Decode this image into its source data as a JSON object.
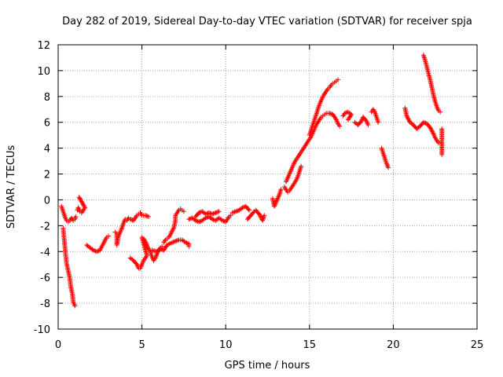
{
  "chart_data": {
    "type": "scatter",
    "title": "Day 282 of 2019, Sidereal Day-to-day VTEC variation (SDTVAR) for receiver spja",
    "xlabel": "GPS time / hours",
    "ylabel": "SDTVAR / TECUs",
    "xlim": [
      0,
      25
    ],
    "ylim": [
      -10,
      12
    ],
    "xticks": [
      0,
      5,
      10,
      15,
      20,
      25
    ],
    "yticks": [
      -10,
      -8,
      -6,
      -4,
      -2,
      0,
      2,
      4,
      6,
      8,
      10,
      12
    ],
    "grid": true,
    "marker": "plus",
    "color": "#ff0000",
    "series": [
      {
        "segments": [
          [
            [
              0.2,
              -0.5
            ],
            [
              0.3,
              -0.9
            ],
            [
              0.4,
              -1.3
            ],
            [
              0.5,
              -1.6
            ],
            [
              0.6,
              -1.7
            ],
            [
              0.7,
              -1.6
            ],
            [
              0.8,
              -1.4
            ],
            [
              0.9,
              -1.6
            ],
            [
              1.0,
              -1.5
            ],
            [
              1.05,
              -1.3
            ]
          ],
          [
            [
              0.3,
              -2.2
            ],
            [
              0.35,
              -2.9
            ],
            [
              0.4,
              -3.6
            ],
            [
              0.45,
              -4.3
            ],
            [
              0.5,
              -4.9
            ],
            [
              0.6,
              -5.5
            ],
            [
              0.7,
              -6.1
            ],
            [
              0.75,
              -6.7
            ],
            [
              0.85,
              -7.3
            ],
            [
              0.9,
              -7.9
            ],
            [
              1.0,
              -8.2
            ]
          ],
          [
            [
              1.15,
              -0.8
            ],
            [
              1.2,
              -0.6
            ],
            [
              1.3,
              -0.9
            ],
            [
              1.4,
              -1.0
            ],
            [
              1.5,
              -0.8
            ],
            [
              1.6,
              -0.6
            ],
            [
              1.25,
              0.2
            ]
          ],
          [
            [
              1.7,
              -3.5
            ],
            [
              1.9,
              -3.7
            ],
            [
              2.1,
              -3.9
            ],
            [
              2.3,
              -4.0
            ],
            [
              2.5,
              -3.9
            ],
            [
              2.6,
              -3.6
            ],
            [
              2.7,
              -3.4
            ],
            [
              2.8,
              -3.1
            ],
            [
              2.9,
              -2.9
            ],
            [
              3.0,
              -2.8
            ]
          ],
          [
            [
              3.4,
              -2.5
            ],
            [
              3.5,
              -2.6
            ],
            [
              3.5,
              -3.0
            ],
            [
              3.5,
              -3.5
            ],
            [
              3.6,
              -2.8
            ],
            [
              3.7,
              -2.5
            ],
            [
              3.8,
              -2.2
            ],
            [
              3.9,
              -1.8
            ],
            [
              4.0,
              -1.5
            ],
            [
              4.1,
              -1.6
            ],
            [
              4.2,
              -1.4
            ],
            [
              4.3,
              -1.5
            ],
            [
              4.5,
              -1.6
            ],
            [
              4.6,
              -1.4
            ],
            [
              4.7,
              -1.2
            ],
            [
              4.8,
              -1.1
            ],
            [
              4.9,
              -1.0
            ],
            [
              5.0,
              -1.2
            ],
            [
              5.2,
              -1.2
            ],
            [
              5.4,
              -1.3
            ]
          ],
          [
            [
              4.3,
              -4.5
            ],
            [
              4.5,
              -4.7
            ],
            [
              4.7,
              -5.0
            ],
            [
              4.8,
              -5.3
            ],
            [
              4.9,
              -5.3
            ],
            [
              5.0,
              -5.0
            ],
            [
              5.1,
              -4.7
            ],
            [
              5.2,
              -4.5
            ],
            [
              5.3,
              -4.3
            ],
            [
              5.0,
              -2.9
            ]
          ],
          [
            [
              5.1,
              -3.0
            ],
            [
              5.2,
              -3.2
            ],
            [
              5.3,
              -3.5
            ],
            [
              5.4,
              -3.8
            ],
            [
              5.5,
              -4.0
            ],
            [
              5.6,
              -4.4
            ],
            [
              5.7,
              -4.7
            ],
            [
              5.8,
              -4.5
            ],
            [
              5.9,
              -4.2
            ],
            [
              6.0,
              -3.9
            ],
            [
              6.1,
              -3.7
            ],
            [
              6.2,
              -3.6
            ]
          ],
          [
            [
              6.3,
              -3.3
            ],
            [
              6.4,
              -3.1
            ],
            [
              6.5,
              -3.0
            ],
            [
              6.6,
              -2.9
            ],
            [
              6.7,
              -2.7
            ],
            [
              6.8,
              -2.4
            ],
            [
              6.9,
              -2.2
            ],
            [
              7.0,
              -1.6
            ],
            [
              7.0,
              -1.2
            ],
            [
              7.1,
              -1.0
            ],
            [
              7.2,
              -0.8
            ],
            [
              7.3,
              -0.7
            ],
            [
              7.4,
              -0.8
            ],
            [
              7.5,
              -0.9
            ]
          ],
          [
            [
              5.6,
              -3.9
            ],
            [
              5.9,
              -4.0
            ],
            [
              6.1,
              -3.8
            ],
            [
              6.3,
              -3.9
            ],
            [
              6.5,
              -3.5
            ],
            [
              6.8,
              -3.3
            ],
            [
              7.0,
              -3.2
            ],
            [
              7.2,
              -3.1
            ],
            [
              7.4,
              -3.1
            ],
            [
              7.6,
              -3.3
            ],
            [
              7.8,
              -3.4
            ],
            [
              7.8,
              -3.6
            ]
          ],
          [
            [
              8.2,
              -1.3
            ],
            [
              8.4,
              -1.0
            ],
            [
              8.6,
              -0.9
            ],
            [
              8.8,
              -1.1
            ],
            [
              9.0,
              -1.0
            ],
            [
              9.2,
              -1.1
            ],
            [
              9.4,
              -1.0
            ],
            [
              9.6,
              -0.9
            ]
          ],
          [
            [
              7.8,
              -1.5
            ],
            [
              8.0,
              -1.4
            ],
            [
              8.2,
              -1.6
            ],
            [
              8.4,
              -1.7
            ],
            [
              8.6,
              -1.6
            ],
            [
              8.8,
              -1.4
            ],
            [
              9.0,
              -1.3
            ],
            [
              9.2,
              -1.5
            ],
            [
              9.4,
              -1.6
            ],
            [
              9.6,
              -1.4
            ],
            [
              9.8,
              -1.6
            ],
            [
              10.0,
              -1.7
            ],
            [
              10.1,
              -1.5
            ],
            [
              10.2,
              -1.3
            ],
            [
              10.3,
              -1.2
            ]
          ],
          [
            [
              10.4,
              -1.0
            ],
            [
              10.6,
              -0.9
            ],
            [
              10.8,
              -0.8
            ],
            [
              11.0,
              -0.6
            ],
            [
              11.2,
              -0.5
            ],
            [
              11.4,
              -0.8
            ]
          ],
          [
            [
              11.3,
              -1.5
            ],
            [
              11.5,
              -1.2
            ],
            [
              11.7,
              -0.9
            ],
            [
              11.8,
              -0.8
            ],
            [
              12.0,
              -1.1
            ],
            [
              12.2,
              -1.6
            ],
            [
              12.3,
              -1.2
            ]
          ],
          [
            [
              12.8,
              0.1
            ],
            [
              12.9,
              -0.5
            ],
            [
              13.2,
              0.4
            ],
            [
              13.3,
              0.8
            ]
          ],
          [
            [
              13.5,
              1.0
            ],
            [
              13.6,
              0.8
            ],
            [
              13.7,
              0.6
            ],
            [
              13.8,
              0.7
            ],
            [
              13.9,
              0.9
            ],
            [
              14.0,
              1.1
            ],
            [
              14.1,
              1.3
            ],
            [
              14.2,
              1.5
            ],
            [
              14.3,
              1.8
            ],
            [
              14.4,
              2.2
            ],
            [
              14.5,
              2.6
            ]
          ],
          [
            [
              13.6,
              1.4
            ],
            [
              13.7,
              1.7
            ],
            [
              13.8,
              2.0
            ],
            [
              13.9,
              2.3
            ],
            [
              14.0,
              2.6
            ],
            [
              14.1,
              2.9
            ],
            [
              14.2,
              3.1
            ],
            [
              14.3,
              3.3
            ],
            [
              14.4,
              3.5
            ],
            [
              14.5,
              3.7
            ],
            [
              14.6,
              3.9
            ],
            [
              14.7,
              4.1
            ],
            [
              14.8,
              4.3
            ],
            [
              14.9,
              4.5
            ],
            [
              15.0,
              4.7
            ],
            [
              15.1,
              4.9
            ],
            [
              15.2,
              5.2
            ],
            [
              15.3,
              5.5
            ],
            [
              15.4,
              5.8
            ],
            [
              15.5,
              6.0
            ],
            [
              15.6,
              6.2
            ],
            [
              15.7,
              6.4
            ],
            [
              15.8,
              6.5
            ],
            [
              15.9,
              6.6
            ],
            [
              16.0,
              6.7
            ],
            [
              16.2,
              6.7
            ],
            [
              16.4,
              6.6
            ],
            [
              16.6,
              6.2
            ],
            [
              16.7,
              5.9
            ],
            [
              16.8,
              5.7
            ]
          ],
          [
            [
              15.0,
              5.0
            ],
            [
              15.1,
              5.4
            ],
            [
              15.2,
              5.8
            ],
            [
              15.3,
              6.2
            ],
            [
              15.4,
              6.6
            ],
            [
              15.5,
              7.0
            ],
            [
              15.6,
              7.4
            ],
            [
              15.7,
              7.7
            ],
            [
              15.8,
              8.0
            ],
            [
              15.9,
              8.2
            ],
            [
              16.0,
              8.4
            ],
            [
              16.1,
              8.6
            ],
            [
              16.2,
              8.7
            ],
            [
              16.3,
              8.9
            ],
            [
              16.4,
              9.0
            ],
            [
              16.5,
              9.1
            ],
            [
              16.6,
              9.2
            ],
            [
              16.7,
              9.3
            ]
          ],
          [
            [
              17.0,
              6.5
            ],
            [
              17.1,
              6.7
            ],
            [
              17.3,
              6.8
            ],
            [
              17.5,
              6.6
            ],
            [
              17.3,
              6.2
            ]
          ],
          [
            [
              17.7,
              6.0
            ],
            [
              17.9,
              5.8
            ],
            [
              18.1,
              6.1
            ],
            [
              18.2,
              6.4
            ],
            [
              18.4,
              6.1
            ],
            [
              18.5,
              5.8
            ]
          ],
          [
            [
              18.7,
              6.8
            ],
            [
              18.8,
              7.0
            ],
            [
              18.9,
              6.8
            ],
            [
              19.0,
              6.4
            ],
            [
              19.1,
              6.0
            ]
          ],
          [
            [
              19.3,
              4.0
            ],
            [
              19.4,
              3.6
            ],
            [
              19.5,
              3.2
            ],
            [
              19.6,
              2.8
            ],
            [
              19.7,
              2.5
            ]
          ],
          [
            [
              20.7,
              7.1
            ],
            [
              20.8,
              6.5
            ],
            [
              21.0,
              6.0
            ],
            [
              21.2,
              5.8
            ],
            [
              21.4,
              5.5
            ],
            [
              21.6,
              5.7
            ],
            [
              21.8,
              6.0
            ],
            [
              22.0,
              5.9
            ],
            [
              22.2,
              5.6
            ],
            [
              22.4,
              5.1
            ],
            [
              22.5,
              4.8
            ],
            [
              22.6,
              4.6
            ],
            [
              22.7,
              4.4
            ]
          ],
          [
            [
              21.8,
              11.2
            ],
            [
              21.9,
              10.8
            ],
            [
              22.0,
              10.3
            ],
            [
              22.1,
              9.8
            ],
            [
              22.2,
              9.3
            ],
            [
              22.3,
              8.7
            ],
            [
              22.4,
              8.1
            ],
            [
              22.5,
              7.6
            ],
            [
              22.6,
              7.2
            ],
            [
              22.7,
              6.9
            ],
            [
              22.8,
              6.8
            ]
          ],
          [
            [
              22.9,
              5.5
            ],
            [
              22.9,
              3.5
            ]
          ]
        ]
      }
    ]
  }
}
